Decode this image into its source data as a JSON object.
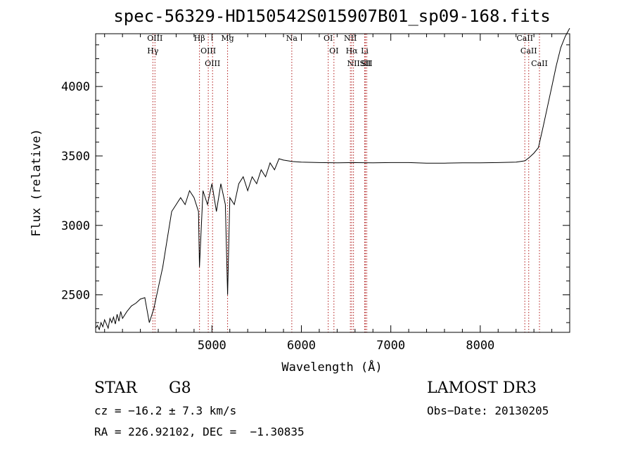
{
  "chart_data": {
    "type": "line",
    "title": "spec-56329-HD150542S015907B01_sp09-168.fits",
    "xlabel": "Wavelength (Å)",
    "ylabel": "Flux (relative)",
    "xlim": [
      3700,
      9000
    ],
    "ylim": [
      2230,
      4380
    ],
    "xticks": [
      5000,
      6000,
      7000,
      8000
    ],
    "yticks": [
      2500,
      3000,
      3500,
      4000
    ],
    "grid": false,
    "line_color": "#000000",
    "marker_color": "#b01818",
    "lines": [
      {
        "label": "OIII",
        "wavelength": 4363
      },
      {
        "label": "Hγ",
        "wavelength": 4340
      },
      {
        "label": "Hβ",
        "wavelength": 4861
      },
      {
        "label": "OIII",
        "wavelength": 4959
      },
      {
        "label": "OIII",
        "wavelength": 5007
      },
      {
        "label": "Mg",
        "wavelength": 5175
      },
      {
        "label": "Na",
        "wavelength": 5893
      },
      {
        "label": "OI",
        "wavelength": 6300
      },
      {
        "label": "OI",
        "wavelength": 6364
      },
      {
        "label": "NII",
        "wavelength": 6548
      },
      {
        "label": "Hα",
        "wavelength": 6563
      },
      {
        "label": "NII",
        "wavelength": 6583
      },
      {
        "label": "SII",
        "wavelength": 6716
      },
      {
        "label": "Li",
        "wavelength": 6708
      },
      {
        "label": "SII",
        "wavelength": 6731
      },
      {
        "label": "CaII",
        "wavelength": 8498
      },
      {
        "label": "CaII",
        "wavelength": 8542
      },
      {
        "label": "CaII",
        "wavelength": 8662
      }
    ],
    "series": [
      {
        "name": "spectrum",
        "x": [
          3700,
          3720,
          3740,
          3760,
          3780,
          3800,
          3820,
          3840,
          3860,
          3880,
          3900,
          3920,
          3940,
          3960,
          3980,
          4000,
          4050,
          4100,
          4150,
          4200,
          4250,
          4300,
          4350,
          4400,
          4450,
          4500,
          4550,
          4600,
          4650,
          4700,
          4750,
          4800,
          4850,
          4861,
          4900,
          4950,
          5000,
          5050,
          5100,
          5150,
          5175,
          5200,
          5250,
          5300,
          5350,
          5400,
          5450,
          5500,
          5550,
          5600,
          5650,
          5700,
          5750,
          5800,
          5850,
          5900,
          6000,
          6200,
          6400,
          6600,
          6800,
          7000,
          7200,
          7400,
          7600,
          7800,
          8000,
          8200,
          8400,
          8500,
          8550,
          8600,
          8650,
          8700,
          8750,
          8800,
          8850,
          8900,
          8950,
          9000
        ],
        "y": [
          2260,
          2280,
          2250,
          2300,
          2270,
          2320,
          2290,
          2260,
          2330,
          2300,
          2340,
          2290,
          2360,
          2310,
          2380,
          2330,
          2380,
          2420,
          2440,
          2470,
          2480,
          2300,
          2400,
          2550,
          2700,
          2900,
          3100,
          3150,
          3200,
          3150,
          3250,
          3200,
          3100,
          2700,
          3250,
          3150,
          3300,
          3100,
          3300,
          3150,
          2500,
          3200,
          3150,
          3300,
          3350,
          3250,
          3350,
          3300,
          3400,
          3350,
          3450,
          3400,
          3480,
          3470,
          3465,
          3460,
          3455,
          3452,
          3450,
          3452,
          3450,
          3452,
          3452,
          3448,
          3448,
          3450,
          3450,
          3452,
          3455,
          3465,
          3490,
          3520,
          3560,
          3700,
          3850,
          4000,
          4150,
          4280,
          4360,
          4420
        ]
      }
    ]
  },
  "info": {
    "class_label": "STAR",
    "subclass_label": "G8",
    "survey": "LAMOST DR3",
    "cz": "cz = −16.2 ± 7.3 km/s",
    "obs_date": "Obs−Date: 20130205",
    "radec": "RA = 226.92102, DEC =  −1.30835"
  }
}
